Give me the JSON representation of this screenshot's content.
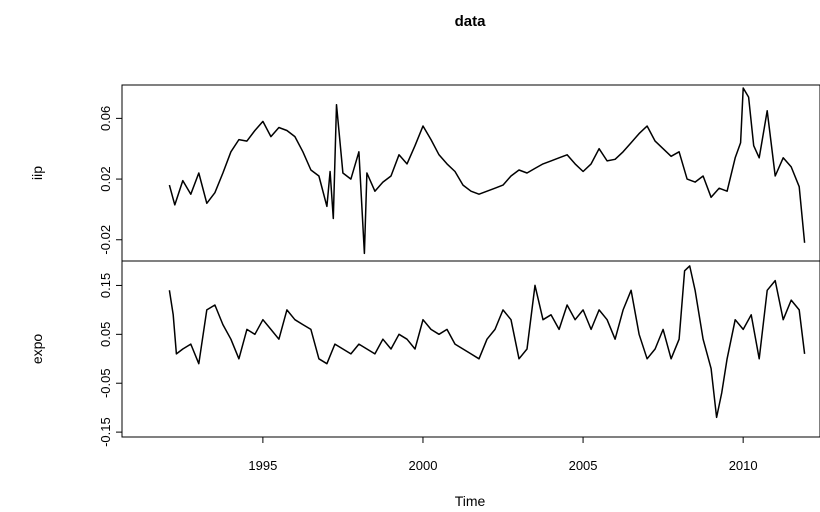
{
  "chart_data": {
    "type": "line",
    "title": "data",
    "xlabel": "Time",
    "x_ticks": [
      1995,
      2000,
      2005,
      2010
    ],
    "xlim": [
      1990.6,
      2012.4
    ],
    "series": [
      {
        "name": "iip",
        "ylabel": "iip",
        "ylim": [
          -0.034,
          0.082
        ],
        "y_ticks": [
          -0.02,
          0.02,
          0.06
        ],
        "y_tick_labels": [
          "-0.02",
          "0.02",
          "0.06"
        ],
        "x": [
          1992.08,
          1992.25,
          1992.5,
          1992.75,
          1993.0,
          1993.25,
          1993.5,
          1993.75,
          1994.0,
          1994.25,
          1994.5,
          1994.75,
          1995.0,
          1995.25,
          1995.5,
          1995.75,
          1996.0,
          1996.25,
          1996.5,
          1996.75,
          1997.0,
          1997.1,
          1997.2,
          1997.3,
          1997.5,
          1997.75,
          1998.0,
          1998.17,
          1998.25,
          1998.5,
          1998.75,
          1999.0,
          1999.25,
          1999.5,
          1999.75,
          2000.0,
          2000.25,
          2000.5,
          2000.75,
          2001.0,
          2001.25,
          2001.5,
          2001.75,
          2002.0,
          2002.25,
          2002.5,
          2002.75,
          2003.0,
          2003.25,
          2003.5,
          2003.75,
          2004.0,
          2004.25,
          2004.5,
          2004.75,
          2005.0,
          2005.25,
          2005.5,
          2005.75,
          2006.0,
          2006.25,
          2006.5,
          2006.75,
          2007.0,
          2007.25,
          2007.5,
          2007.75,
          2008.0,
          2008.25,
          2008.5,
          2008.75,
          2009.0,
          2009.25,
          2009.5,
          2009.75,
          2009.92,
          2010.0,
          2010.17,
          2010.33,
          2010.5,
          2010.75,
          2011.0,
          2011.25,
          2011.5,
          2011.75,
          2011.92
        ],
        "values": [
          0.016,
          0.003,
          0.019,
          0.01,
          0.024,
          0.004,
          0.011,
          0.024,
          0.038,
          0.046,
          0.045,
          0.052,
          0.058,
          0.048,
          0.054,
          0.052,
          0.048,
          0.038,
          0.026,
          0.022,
          0.002,
          0.025,
          -0.006,
          0.069,
          0.024,
          0.02,
          0.038,
          -0.029,
          0.024,
          0.012,
          0.018,
          0.022,
          0.036,
          0.03,
          0.042,
          0.055,
          0.046,
          0.036,
          0.03,
          0.025,
          0.016,
          0.012,
          0.01,
          0.012,
          0.014,
          0.016,
          0.022,
          0.026,
          0.024,
          0.027,
          0.03,
          0.032,
          0.034,
          0.036,
          0.03,
          0.025,
          0.03,
          0.04,
          0.032,
          0.033,
          0.038,
          0.044,
          0.05,
          0.055,
          0.045,
          0.04,
          0.035,
          0.038,
          0.02,
          0.018,
          0.022,
          0.008,
          0.014,
          0.012,
          0.034,
          0.044,
          0.08,
          0.074,
          0.042,
          0.034,
          0.065,
          0.022,
          0.034,
          0.028,
          0.015,
          -0.022
        ]
      },
      {
        "name": "expo",
        "ylabel": "expo",
        "ylim": [
          -0.16,
          0.2
        ],
        "y_ticks": [
          -0.15,
          -0.05,
          0.05,
          0.15
        ],
        "y_tick_labels": [
          "-0.15",
          "-0.05",
          "0.05",
          "0.15"
        ],
        "x": [
          1992.08,
          1992.2,
          1992.3,
          1992.5,
          1992.75,
          1993.0,
          1993.25,
          1993.5,
          1993.75,
          1994.0,
          1994.25,
          1994.5,
          1994.75,
          1995.0,
          1995.25,
          1995.5,
          1995.75,
          1996.0,
          1996.25,
          1996.5,
          1996.75,
          1997.0,
          1997.25,
          1997.5,
          1997.75,
          1998.0,
          1998.25,
          1998.5,
          1998.75,
          1999.0,
          1999.25,
          1999.5,
          1999.75,
          2000.0,
          2000.25,
          2000.5,
          2000.75,
          2001.0,
          2001.25,
          2001.5,
          2001.75,
          2002.0,
          2002.25,
          2002.5,
          2002.75,
          2003.0,
          2003.25,
          2003.5,
          2003.75,
          2004.0,
          2004.25,
          2004.5,
          2004.75,
          2005.0,
          2005.25,
          2005.5,
          2005.75,
          2006.0,
          2006.25,
          2006.5,
          2006.75,
          2007.0,
          2007.25,
          2007.5,
          2007.75,
          2008.0,
          2008.17,
          2008.33,
          2008.5,
          2008.75,
          2009.0,
          2009.17,
          2009.33,
          2009.5,
          2009.75,
          2010.0,
          2010.25,
          2010.5,
          2010.75,
          2011.0,
          2011.25,
          2011.5,
          2011.75,
          2011.92
        ],
        "values": [
          0.14,
          0.09,
          0.01,
          0.02,
          0.03,
          -0.01,
          0.1,
          0.11,
          0.07,
          0.04,
          0.0,
          0.06,
          0.05,
          0.08,
          0.06,
          0.04,
          0.1,
          0.08,
          0.07,
          0.06,
          0.0,
          -0.01,
          0.03,
          0.02,
          0.01,
          0.03,
          0.02,
          0.01,
          0.04,
          0.02,
          0.05,
          0.04,
          0.02,
          0.08,
          0.06,
          0.05,
          0.06,
          0.03,
          0.02,
          0.01,
          0.0,
          0.04,
          0.06,
          0.1,
          0.08,
          0.0,
          0.02,
          0.15,
          0.08,
          0.09,
          0.06,
          0.11,
          0.08,
          0.1,
          0.06,
          0.1,
          0.08,
          0.04,
          0.1,
          0.14,
          0.05,
          0.0,
          0.02,
          0.06,
          0.0,
          0.04,
          0.18,
          0.19,
          0.14,
          0.04,
          -0.02,
          -0.12,
          -0.07,
          0.0,
          0.08,
          0.06,
          0.09,
          0.0,
          0.14,
          0.16,
          0.08,
          0.12,
          0.1,
          0.01
        ]
      }
    ]
  }
}
